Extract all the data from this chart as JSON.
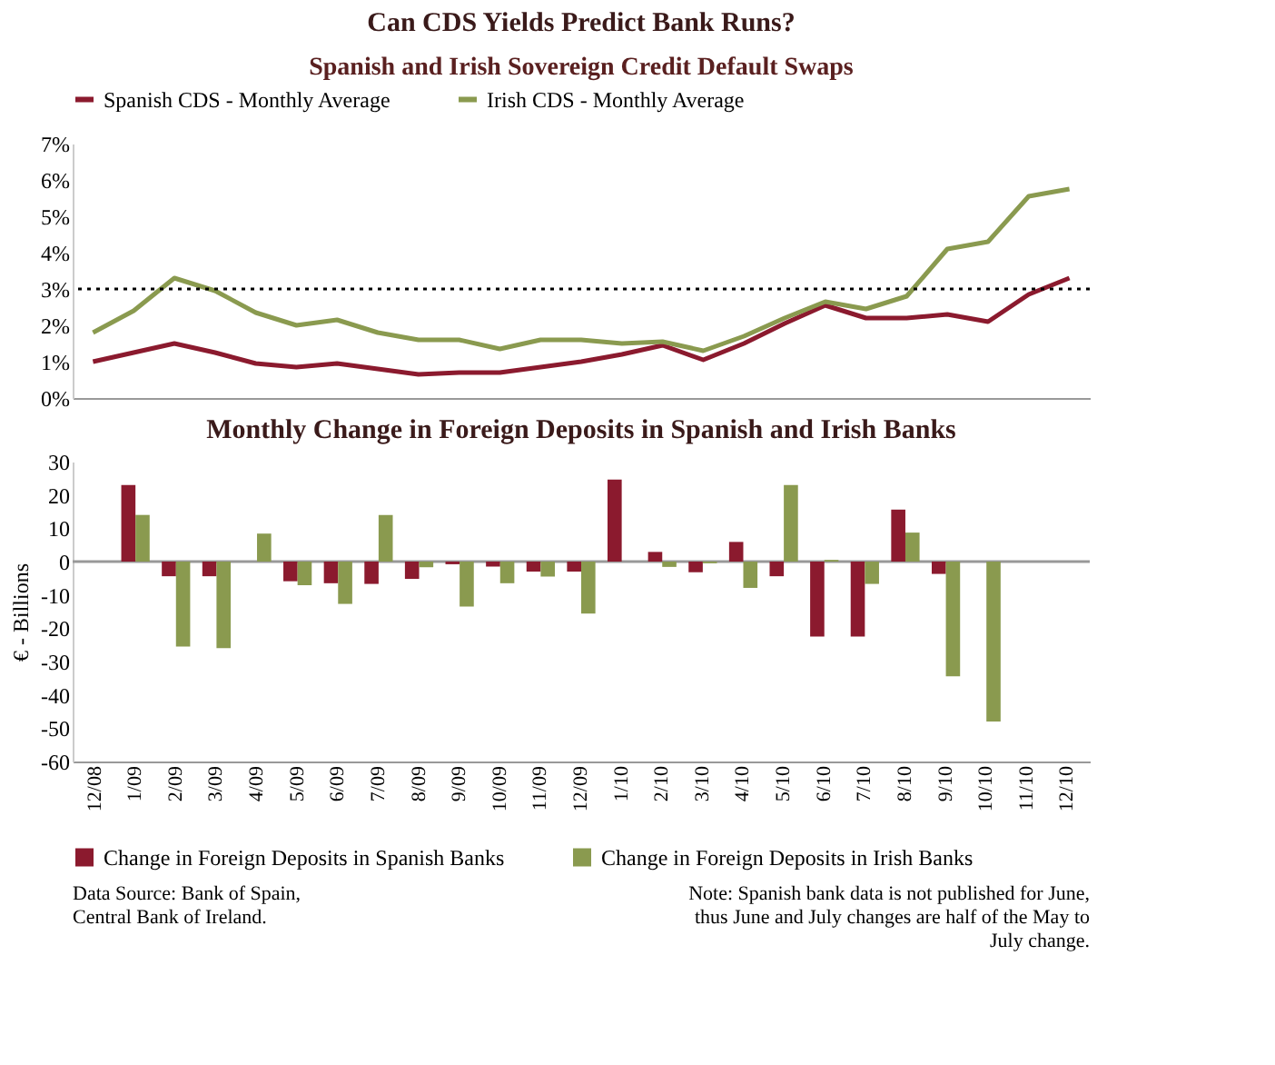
{
  "chart_data": [
    {
      "type": "line",
      "title": "Can CDS Yields Predict Bank Runs?",
      "subtitle": "Spanish and Irish Sovereign Credit Default Swaps",
      "categories": [
        null,
        null,
        null,
        null,
        null,
        null,
        null,
        null,
        null,
        null,
        null,
        null,
        null,
        null,
        null,
        null,
        null,
        null,
        null,
        null,
        null,
        null,
        null,
        null,
        null
      ],
      "series": [
        {
          "name": "Spanish CDS - Monthly Average",
          "color": "#8b1a2e",
          "values": [
            1.0,
            1.25,
            1.5,
            1.25,
            0.95,
            0.85,
            0.95,
            0.8,
            0.65,
            0.7,
            0.7,
            0.85,
            1.0,
            1.2,
            1.45,
            1.05,
            1.5,
            2.05,
            2.55,
            2.2,
            2.2,
            2.3,
            2.1,
            2.85,
            3.3
          ]
        },
        {
          "name": "Irish CDS - Monthly Average",
          "color": "#8a9a4f",
          "values": [
            1.8,
            2.4,
            3.3,
            2.95,
            2.35,
            2.0,
            2.15,
            1.8,
            1.6,
            1.6,
            1.35,
            1.6,
            1.6,
            1.5,
            1.55,
            1.3,
            1.7,
            2.2,
            2.65,
            2.45,
            2.8,
            4.1,
            4.3,
            5.55,
            5.75
          ]
        }
      ],
      "ylim": [
        0,
        7
      ],
      "yticks": [
        {
          "value": 0,
          "label": "0%"
        },
        {
          "value": 1,
          "label": "1%"
        },
        {
          "value": 2,
          "label": "2%"
        },
        {
          "value": 3,
          "label": "3%"
        },
        {
          "value": 4,
          "label": "4%"
        },
        {
          "value": 5,
          "label": "5%"
        },
        {
          "value": 6,
          "label": "6%"
        },
        {
          "value": 7,
          "label": "7%"
        }
      ],
      "ref_lines": [
        {
          "axis": "y",
          "value": 3,
          "color": "#000000",
          "line_style": "dotted"
        }
      ],
      "legend": "top",
      "tick_labels": "y",
      "marker": "none",
      "line_style": "solid"
    },
    {
      "type": "bar",
      "title": "Monthly Change in Foreign Deposits in Spanish and Irish Banks",
      "ylabel": "€ - Billions",
      "categories": [
        "12/08",
        "1/09",
        "2/09",
        "3/09",
        "4/09",
        "5/09",
        "6/09",
        "7/09",
        "8/09",
        "9/09",
        "10/09",
        "11/09",
        "12/09",
        "1/10",
        "2/10",
        "3/10",
        "4/10",
        "5/10",
        "6/10",
        "7/10",
        "8/10",
        "9/10",
        "10/10",
        "11/10",
        "12/10"
      ],
      "series": [
        {
          "name": "Change in  Foreign Deposits  in Spanish Banks",
          "color": "#8b1a2e",
          "values": [
            null,
            23,
            -4.4,
            -4.4,
            0,
            -5.9,
            -6.5,
            -6.7,
            -5.2,
            -0.8,
            -1.5,
            -3,
            -3,
            24.6,
            2.9,
            -3.2,
            5.9,
            -4.4,
            -22.5,
            -22.5,
            15.6,
            -3.7,
            0,
            null,
            null
          ]
        },
        {
          "name": "Change in  Foreign Deposits  in Irish Banks",
          "color": "#8a9a4f",
          "values": [
            null,
            14,
            -25.5,
            -26,
            8.4,
            -7.1,
            -12.7,
            14,
            -1.7,
            -13.5,
            -6.5,
            -4.5,
            -15.6,
            0,
            -1.6,
            -0.5,
            -7.9,
            23,
            0.5,
            -6.7,
            8.7,
            -34.4,
            -48,
            null,
            null
          ]
        }
      ],
      "ylim": [
        -60,
        30
      ],
      "yticks": [
        -60,
        -50,
        -40,
        -30,
        -20,
        -10,
        0,
        10,
        20,
        30
      ],
      "ref_lines": [
        {
          "axis": "y",
          "value": 0,
          "color": "#999999"
        }
      ],
      "legend": "bottom",
      "annotations": [
        "Data Source: Bank of Spain, Central Bank of Ireland.",
        "Note: Spanish bank data is not published for June, thus June and July changes are half of the May to July change."
      ]
    }
  ]
}
